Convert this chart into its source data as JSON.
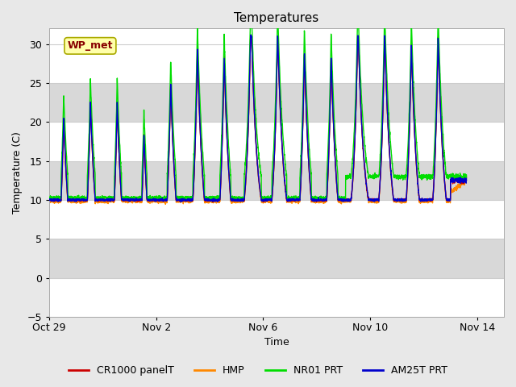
{
  "title": "Temperatures",
  "xlabel": "Time",
  "ylabel": "Temperature (C)",
  "xlim_start": 0,
  "xlim_end": 17.0,
  "ylim": [
    -5,
    32
  ],
  "yticks": [
    -5,
    0,
    5,
    10,
    15,
    20,
    25,
    30
  ],
  "xtick_positions": [
    0,
    4,
    8,
    12,
    16
  ],
  "xtick_labels": [
    "Oct 29",
    "Nov 2",
    "Nov 6",
    "Nov 10",
    "Nov 14"
  ],
  "background_color": "#e8e8e8",
  "plot_bg_color": "#e8e8e8",
  "series": [
    {
      "label": "CR1000 panelT",
      "color": "#cc0000",
      "lw": 1.0,
      "zorder": 3
    },
    {
      "label": "HMP",
      "color": "#ff8800",
      "lw": 1.0,
      "zorder": 2
    },
    {
      "label": "NR01 PRT",
      "color": "#00dd00",
      "lw": 1.0,
      "zorder": 4
    },
    {
      "label": "AM25T PRT",
      "color": "#0000cc",
      "lw": 1.0,
      "zorder": 5
    }
  ],
  "annotation_text": "WP_met",
  "annotation_color": "#880000",
  "annotation_bg": "#ffffaa",
  "annotation_border": "#aaaa00",
  "band_colors": [
    "#ffffff",
    "#d8d8d8"
  ],
  "band_ranges": [
    [
      -5,
      0
    ],
    [
      0,
      5
    ],
    [
      5,
      10
    ],
    [
      10,
      15
    ],
    [
      15,
      20
    ],
    [
      20,
      25
    ],
    [
      25,
      32
    ]
  ],
  "legend_fontsize": 9,
  "tick_fontsize": 9
}
